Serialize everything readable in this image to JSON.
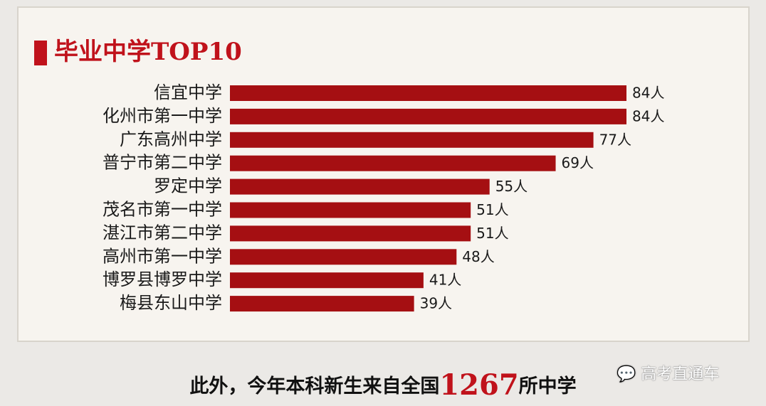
{
  "chart_data": {
    "type": "hbar",
    "title": "毕业中学TOP10",
    "categories": [
      "信宜中学",
      "化州市第一中学",
      "广东高州中学",
      "普宁市第二中学",
      "罗定中学",
      "茂名市第一中学",
      "湛江市第二中学",
      "高州市第一中学",
      "博罗县博罗中学",
      "梅县东山中学"
    ],
    "values": [
      84,
      84,
      77,
      69,
      55,
      51,
      51,
      48,
      41,
      39
    ],
    "value_labels": [
      "84人",
      "84人",
      "77人",
      "69人",
      "55人",
      "51人",
      "51人",
      "48人",
      "41人",
      "39人"
    ],
    "color": "#a50f12",
    "xlim": [
      0,
      84
    ]
  },
  "footer": {
    "prefix": "此外，今年本科新生来自全国",
    "number": "1267",
    "suffix": "所中学"
  },
  "watermark": "高考直通车"
}
